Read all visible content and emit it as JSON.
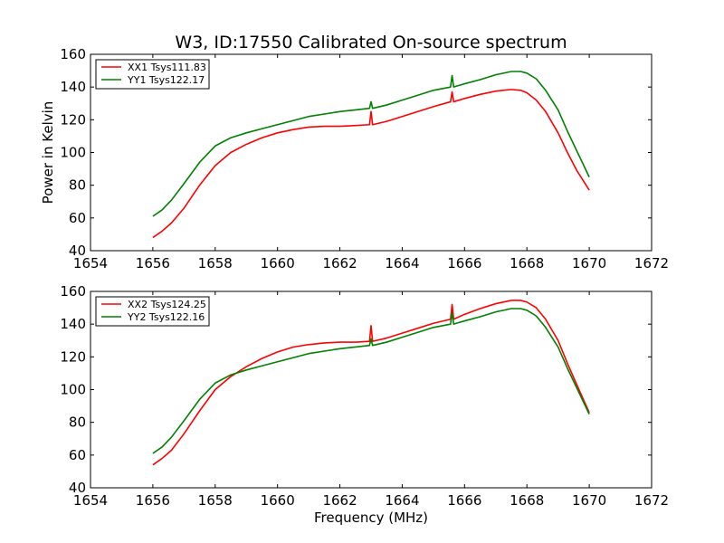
{
  "chart_data": [
    {
      "type": "line",
      "title": "W3, ID:17550 Calibrated On-source spectrum",
      "xlabel": "",
      "ylabel": "Power in Kelvin",
      "xlim": [
        1654,
        1672
      ],
      "ylim": [
        40,
        160
      ],
      "xticks": [
        "1654",
        "1656",
        "1658",
        "1660",
        "1662",
        "1664",
        "1666",
        "1668",
        "1670",
        "1672"
      ],
      "yticks": [
        "40",
        "60",
        "80",
        "100",
        "120",
        "140",
        "160"
      ],
      "grid": false,
      "legend_position": "top-left",
      "series": [
        {
          "name": "XX1 Tsys111.83",
          "color": "#ff0000",
          "x": [
            1656.0,
            1656.3,
            1656.6,
            1657.0,
            1657.5,
            1658.0,
            1658.5,
            1659.0,
            1659.5,
            1660.0,
            1660.5,
            1661.0,
            1661.5,
            1662.0,
            1662.5,
            1662.95,
            1663.0,
            1663.05,
            1663.5,
            1664.0,
            1664.5,
            1665.0,
            1665.55,
            1665.6,
            1665.65,
            1666.0,
            1666.5,
            1667.0,
            1667.5,
            1667.8,
            1668.0,
            1668.3,
            1668.6,
            1669.0,
            1669.3,
            1669.6,
            1670.0
          ],
          "y": [
            48,
            52,
            57,
            66,
            80,
            92,
            100,
            105,
            109,
            112,
            114,
            115.5,
            116,
            116,
            116.5,
            117,
            125,
            117,
            119,
            122,
            125,
            128,
            131,
            137,
            131,
            133,
            135.5,
            137.5,
            138.5,
            138,
            136.5,
            132,
            125,
            112,
            100,
            89,
            77
          ]
        },
        {
          "name": "YY1 Tsys122.17",
          "color": "#008000",
          "x": [
            1656.0,
            1656.3,
            1656.6,
            1657.0,
            1657.5,
            1658.0,
            1658.5,
            1659.0,
            1659.5,
            1660.0,
            1660.5,
            1661.0,
            1661.5,
            1662.0,
            1662.5,
            1662.95,
            1663.0,
            1663.05,
            1663.5,
            1664.0,
            1664.5,
            1665.0,
            1665.55,
            1665.6,
            1665.65,
            1666.0,
            1666.5,
            1667.0,
            1667.5,
            1667.8,
            1668.0,
            1668.3,
            1668.6,
            1669.0,
            1669.3,
            1669.6,
            1670.0
          ],
          "y": [
            61,
            65,
            71,
            81,
            94,
            104,
            109,
            112,
            114.5,
            117,
            119.5,
            122,
            123.5,
            125,
            126,
            127,
            131,
            127,
            129,
            132,
            135,
            138,
            140,
            147,
            140,
            142,
            144.5,
            147.5,
            149.5,
            149.5,
            148.5,
            145,
            138,
            126,
            113,
            101,
            85
          ]
        }
      ]
    },
    {
      "type": "line",
      "title": "",
      "xlabel": "Frequency (MHz)",
      "ylabel": "",
      "xlim": [
        1654,
        1672
      ],
      "ylim": [
        40,
        160
      ],
      "xticks": [
        "1654",
        "1656",
        "1658",
        "1660",
        "1662",
        "1664",
        "1666",
        "1668",
        "1670",
        "1672"
      ],
      "yticks": [
        "40",
        "60",
        "80",
        "100",
        "120",
        "140",
        "160"
      ],
      "grid": false,
      "legend_position": "top-left",
      "series": [
        {
          "name": "XX2 Tsys124.25",
          "color": "#ff0000",
          "x": [
            1656.0,
            1656.3,
            1656.6,
            1657.0,
            1657.5,
            1658.0,
            1658.5,
            1659.0,
            1659.5,
            1660.0,
            1660.5,
            1661.0,
            1661.5,
            1662.0,
            1662.5,
            1662.95,
            1663.0,
            1663.05,
            1663.5,
            1664.0,
            1664.5,
            1665.0,
            1665.55,
            1665.6,
            1665.65,
            1666.0,
            1666.5,
            1667.0,
            1667.5,
            1667.8,
            1668.0,
            1668.3,
            1668.6,
            1669.0,
            1669.3,
            1669.6,
            1670.0
          ],
          "y": [
            54,
            58,
            63,
            73,
            87,
            100,
            108,
            114,
            119,
            123,
            126,
            127.5,
            128.5,
            129,
            129,
            129.5,
            139,
            129.5,
            131.5,
            134.5,
            137.5,
            140.5,
            143,
            152,
            143,
            146,
            149.5,
            152.5,
            154.5,
            154.5,
            153.5,
            150,
            143,
            130,
            116,
            103,
            86
          ]
        },
        {
          "name": "YY2 Tsys122.16",
          "color": "#008000",
          "x": [
            1656.0,
            1656.3,
            1656.6,
            1657.0,
            1657.5,
            1658.0,
            1658.5,
            1659.0,
            1659.5,
            1660.0,
            1660.5,
            1661.0,
            1661.5,
            1662.0,
            1662.5,
            1662.95,
            1663.0,
            1663.05,
            1663.5,
            1664.0,
            1664.5,
            1665.0,
            1665.55,
            1665.6,
            1665.65,
            1666.0,
            1666.5,
            1667.0,
            1667.5,
            1667.8,
            1668.0,
            1668.3,
            1668.6,
            1669.0,
            1669.3,
            1669.6,
            1670.0
          ],
          "y": [
            61,
            65,
            71,
            81,
            94,
            104,
            109,
            112,
            114.5,
            117,
            119.5,
            122,
            123.5,
            125,
            126,
            127,
            131,
            127,
            129,
            132,
            135,
            138,
            140,
            147,
            140,
            142,
            144.5,
            147.5,
            149.5,
            149.5,
            148.5,
            145,
            138,
            126,
            113,
            101,
            85
          ]
        }
      ]
    }
  ]
}
